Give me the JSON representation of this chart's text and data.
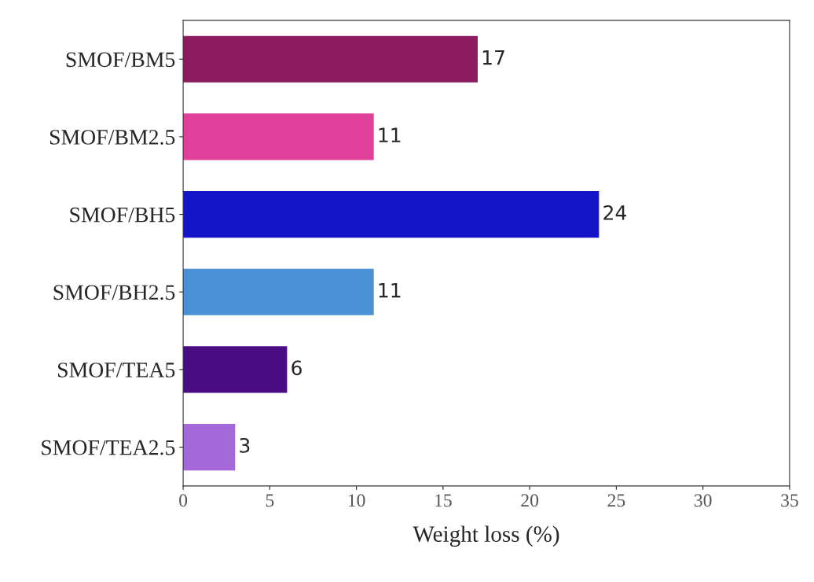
{
  "chart_data": {
    "type": "bar",
    "orientation": "horizontal",
    "xlabel": "Weight loss (%)",
    "categories": [
      "SMOF/BM5",
      "SMOF/BM2.5",
      "SMOF/BH5",
      "SMOF/BH2.5",
      "SMOF/TEA5",
      "SMOF/TEA2.5"
    ],
    "values": [
      17,
      11,
      24,
      11,
      6,
      3
    ],
    "colors": [
      "#8c1a5e",
      "#e0409a",
      "#1414c8",
      "#4a90d4",
      "#4a0c82",
      "#a468d8"
    ],
    "xlim": [
      0,
      35
    ],
    "xticks": [
      0,
      5,
      10,
      15,
      20,
      25,
      30,
      35
    ],
    "data_labels": true,
    "grid": false,
    "legend": false
  }
}
